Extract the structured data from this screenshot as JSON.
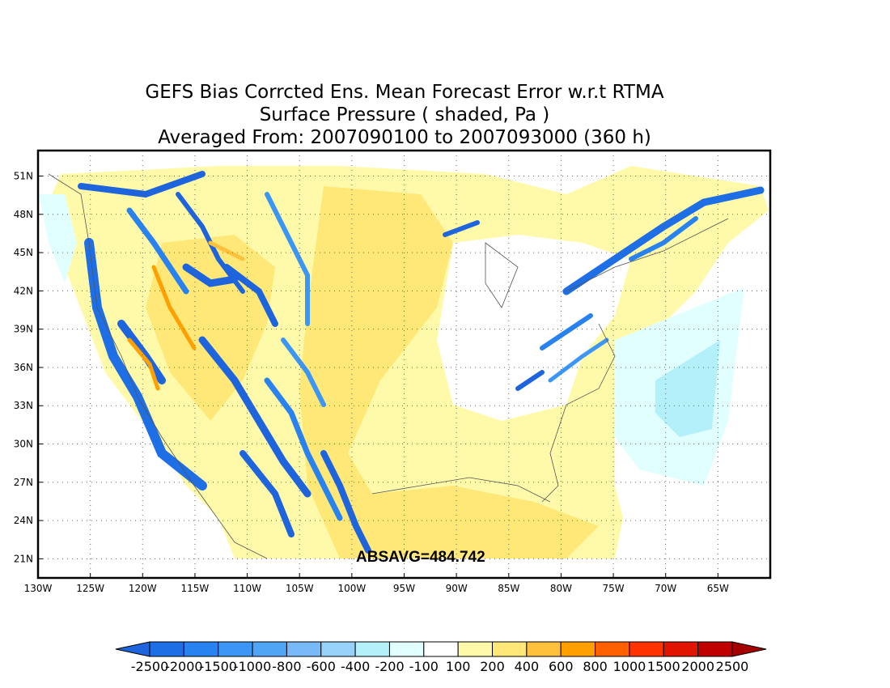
{
  "title": {
    "line1": "GEFS Bias Corrcted Ens. Mean Forecast Error w.r.t RTMA",
    "line2": "Surface Pressure ( shaded, Pa )",
    "line3": "Averaged From: 2007090100 to 2007093000 (360 h)"
  },
  "map": {
    "lon_range": [
      -130,
      -60
    ],
    "lat_range": [
      19.5,
      53
    ],
    "lon_ticks": [
      "130W",
      "125W",
      "120W",
      "115W",
      "110W",
      "105W",
      "100W",
      "95W",
      "90W",
      "85W",
      "80W",
      "75W",
      "70W",
      "65W"
    ],
    "lon_tick_values": [
      -130,
      -125,
      -120,
      -115,
      -110,
      -105,
      -100,
      -95,
      -90,
      -85,
      -80,
      -75,
      -70,
      -65
    ],
    "lat_ticks": [
      "21N",
      "24N",
      "27N",
      "30N",
      "33N",
      "36N",
      "39N",
      "42N",
      "45N",
      "48N",
      "51N"
    ],
    "lat_tick_values": [
      21,
      24,
      27,
      30,
      33,
      36,
      39,
      42,
      45,
      48,
      51
    ],
    "absavg_label": "ABSAVG=484.742",
    "grid": true
  },
  "colorbar": {
    "labels": [
      "-2500",
      "-2000",
      "-1500",
      "-1000",
      "-800",
      "-600",
      "-400",
      "-200",
      "-100",
      "100",
      "200",
      "400",
      "600",
      "800",
      "1000",
      "1500",
      "2000",
      "2500"
    ],
    "colors": [
      "#1e64dc",
      "#1e6ee6",
      "#2882f0",
      "#3c96f5",
      "#50a5f5",
      "#78b9fa",
      "#96d2fa",
      "#b4f0fa",
      "#e1ffff",
      "#ffffff",
      "#fffaaa",
      "#ffe878",
      "#ffc03c",
      "#ffa000",
      "#ff6000",
      "#ff3200",
      "#e11400",
      "#c00000",
      "#a50000"
    ]
  }
}
